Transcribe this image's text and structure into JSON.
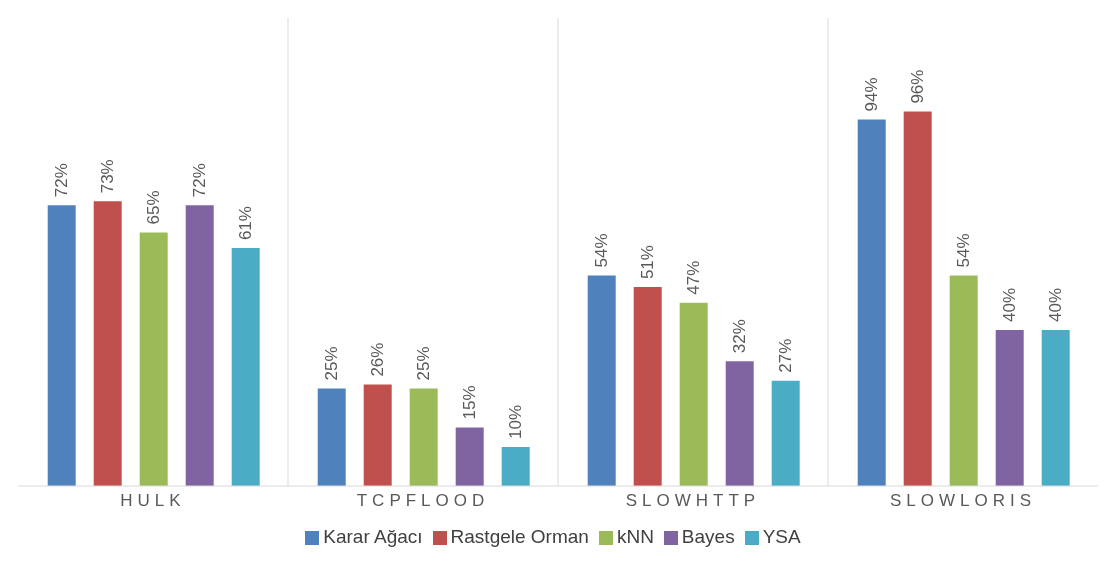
{
  "chart_data": {
    "type": "bar",
    "categories": [
      "HULK",
      "TCPFLOOD",
      "SLOWHTTP",
      "SLOWLORIS"
    ],
    "series": [
      {
        "name": "Karar Ağacı",
        "color": "#4f81bd",
        "values": [
          72,
          25,
          54,
          94
        ],
        "value_labels": [
          "72%",
          "25%",
          "54%",
          "94%"
        ]
      },
      {
        "name": "Rastgele Orman",
        "color": "#c0504d",
        "values": [
          73,
          26,
          51,
          96
        ],
        "value_labels": [
          "73%",
          "26%",
          "51%",
          "96%"
        ]
      },
      {
        "name": "kNN",
        "color": "#9bbb59",
        "values": [
          65,
          25,
          47,
          54
        ],
        "value_labels": [
          "65%",
          "25%",
          "47%",
          "54%"
        ]
      },
      {
        "name": "Bayes",
        "color": "#8064a2",
        "values": [
          72,
          15,
          32,
          40
        ],
        "value_labels": [
          "72%",
          "15%",
          "32%",
          "40%"
        ]
      },
      {
        "name": "YSA",
        "color": "#4bacc6",
        "values": [
          61,
          10,
          27,
          40
        ],
        "value_labels": [
          "61%",
          "10%",
          "27%",
          "40%"
        ]
      }
    ],
    "grid": "x",
    "legend": "bottom"
  }
}
